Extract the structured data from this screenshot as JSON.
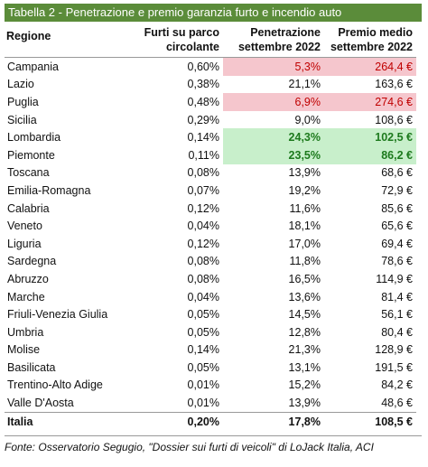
{
  "title": "Tabella 2 - Penetrazione e premio garanzia furto e incendio auto",
  "table": {
    "header": [
      "Regione",
      "Furti su parco circolante",
      "Penetrazione settembre 2022",
      "Premio medio settembre 2022"
    ],
    "rows": [
      [
        "Campania",
        "0,60%",
        "5,3%",
        "264,4 €"
      ],
      [
        "Lazio",
        "0,38%",
        "21,1%",
        "163,6 €"
      ],
      [
        "Puglia",
        "0,48%",
        "6,9%",
        "274,6 €"
      ],
      [
        "Sicilia",
        "0,29%",
        "9,0%",
        "108,6 €"
      ],
      [
        "Lombardia",
        "0,14%",
        "24,3%",
        "102,5 €"
      ],
      [
        "Piemonte",
        "0,11%",
        "23,5%",
        "86,2 €"
      ],
      [
        "Toscana",
        "0,08%",
        "13,9%",
        "68,6 €"
      ],
      [
        "Emilia-Romagna",
        "0,07%",
        "19,2%",
        "72,9 €"
      ],
      [
        "Calabria",
        "0,12%",
        "11,6%",
        "85,6 €"
      ],
      [
        "Veneto",
        "0,04%",
        "18,1%",
        "65,6 €"
      ],
      [
        "Liguria",
        "0,12%",
        "17,0%",
        "69,4 €"
      ],
      [
        "Sardegna",
        "0,08%",
        "11,8%",
        "78,6 €"
      ],
      [
        "Abruzzo",
        "0,08%",
        "16,5%",
        "114,9 €"
      ],
      [
        "Marche",
        "0,04%",
        "13,6%",
        "81,4 €"
      ],
      [
        "Friuli-Venezia Giulia",
        "0,05%",
        "14,5%",
        "56,1 €"
      ],
      [
        "Umbria",
        "0,05%",
        "12,8%",
        "80,4 €"
      ],
      [
        "Molise",
        "0,14%",
        "21,3%",
        "128,9 €"
      ],
      [
        "Basilicata",
        "0,05%",
        "13,1%",
        "191,5 €"
      ],
      [
        "Trentino-Alto Adige",
        "0,01%",
        "15,2%",
        "84,2 €"
      ],
      [
        "Valle D'Aosta",
        "0,01%",
        "13,9%",
        "48,6 €"
      ]
    ],
    "total": [
      "Italia",
      "0,20%",
      "17,8%",
      "108,5 €"
    ]
  },
  "footer": "Fonte: Osservatorio Segugio, \"Dossier sui furti di veicoli\" di LoJack Italia, ACI"
}
